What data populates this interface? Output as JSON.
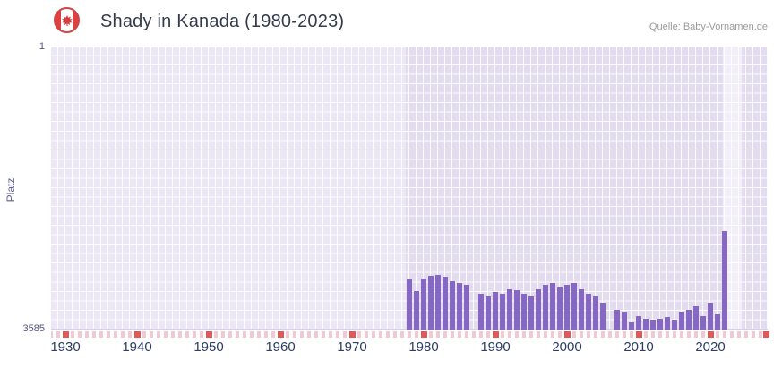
{
  "header": {
    "title": "Shady in Kanada (1980-2023)",
    "source": "Quelle: Baby-Vornamen.de",
    "flag_icon": "canada-flag-roundel"
  },
  "chart_data": {
    "type": "bar",
    "title": "Shady in Kanada (1980-2023)",
    "xlabel": "",
    "ylabel": "Platz",
    "grid": true,
    "legend": false,
    "y_axis": {
      "min": 1,
      "max": 3585,
      "inverted": true,
      "top_label": "1",
      "bottom_label": "3585"
    },
    "x_axis": {
      "range": [
        1928,
        2028
      ],
      "tick_years": [
        1930,
        1940,
        1950,
        1960,
        1970,
        1980,
        1990,
        2000,
        2010,
        2020
      ]
    },
    "colors": {
      "bar": "#8667c2",
      "plot_bg": "#ebe7f4",
      "tick_minor": "#f3c8d0",
      "tick_major": "#dd5a5a",
      "grid": "#ffffff"
    },
    "shade_region": {
      "from": 1977.5,
      "to": 2028
    },
    "highlight_band": {
      "from": 2021.7,
      "to": 2024.4
    },
    "series": [
      {
        "name": "Platz",
        "points": [
          [
            1978,
            2950
          ],
          [
            1979,
            3100
          ],
          [
            1980,
            2940
          ],
          [
            1981,
            2910
          ],
          [
            1982,
            2890
          ],
          [
            1983,
            2915
          ],
          [
            1984,
            2970
          ],
          [
            1985,
            3000
          ],
          [
            1986,
            3020
          ],
          [
            1988,
            3130
          ],
          [
            1989,
            3160
          ],
          [
            1990,
            3110
          ],
          [
            1991,
            3130
          ],
          [
            1992,
            3070
          ],
          [
            1993,
            3090
          ],
          [
            1994,
            3130
          ],
          [
            1995,
            3160
          ],
          [
            1996,
            3070
          ],
          [
            1997,
            3020
          ],
          [
            1998,
            3000
          ],
          [
            1999,
            3050
          ],
          [
            2000,
            3020
          ],
          [
            2001,
            3000
          ],
          [
            2002,
            3070
          ],
          [
            2003,
            3130
          ],
          [
            2004,
            3170
          ],
          [
            2005,
            3240
          ],
          [
            2007,
            3330
          ],
          [
            2008,
            3360
          ],
          [
            2009,
            3490
          ],
          [
            2010,
            3420
          ],
          [
            2011,
            3450
          ],
          [
            2012,
            3460
          ],
          [
            2013,
            3450
          ],
          [
            2014,
            3430
          ],
          [
            2015,
            3460
          ],
          [
            2016,
            3360
          ],
          [
            2017,
            3330
          ],
          [
            2018,
            3290
          ],
          [
            2019,
            3420
          ],
          [
            2020,
            3250
          ],
          [
            2021,
            3390
          ],
          [
            2022,
            2340
          ]
        ]
      }
    ]
  }
}
